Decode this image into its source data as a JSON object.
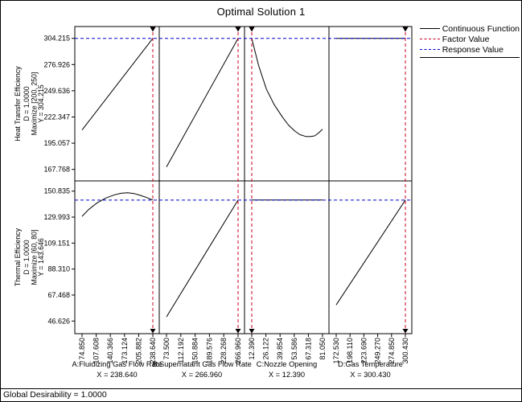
{
  "chart_data": {
    "type": "line",
    "title": "Optimal Solution 1",
    "status_bar": "Global Desirability = 1.0000",
    "colors": {
      "continuous_function": "#000000",
      "factor_value": "#cc0022",
      "response_value": "#0000cc"
    },
    "legend": [
      {
        "label": "Continuous Function",
        "color": "#000000",
        "style": "solid"
      },
      {
        "label": "Factor Value",
        "color": "#cc0022",
        "style": "dashed"
      },
      {
        "label": "Response Value",
        "color": "#0000cc",
        "style": "dashed"
      }
    ],
    "rows": [
      {
        "name_lines": [
          "Heat Transfer Efficiency",
          "D = 1.0000",
          "Maximize [200, 250]",
          "Y = 304.215"
        ],
        "ticks": [
          "304.215",
          "276.926",
          "249.636",
          "222.347",
          "195.057",
          "167.768"
        ],
        "response_value": 304.215
      },
      {
        "name_lines": [
          "Thermal Efficiency",
          "D = 1.0000",
          "Maximize [60, 80]",
          "Y = 143.646"
        ],
        "ticks": [
          "150.835",
          "129.993",
          "109.151",
          "88.310",
          "67.468",
          "46.626"
        ],
        "response_value": 143.646
      }
    ],
    "cols": [
      {
        "name": "A:Fluidizing Gas Flow Rate",
        "value_label": "X = 238.640",
        "ticks": [
          "74.850",
          "107.608",
          "140.366",
          "173.124",
          "205.882",
          "238.640"
        ],
        "factor_value": 238.64
      },
      {
        "name": "B:Supernatant Gas Flow Rate",
        "value_label": "X = 266.960",
        "ticks": [
          "73.500",
          "112.192",
          "150.884",
          "189.576",
          "228.268",
          "266.960"
        ],
        "factor_value": 266.96
      },
      {
        "name": "C:Nozzle Opening",
        "value_label": "X = 12.390",
        "ticks": [
          "12.390",
          "26.122",
          "39.854",
          "53.586",
          "67.318",
          "81.050"
        ],
        "factor_value": 12.39
      },
      {
        "name": "D:Gas Temperature",
        "value_label": "X = 300.430",
        "ticks": [
          "172.530",
          "198.110",
          "223.690",
          "249.270",
          "274.850",
          "300.430"
        ],
        "factor_value": 300.43
      }
    ],
    "cells": [
      {
        "row": 0,
        "col": 0,
        "points": [
          [
            74.85,
            208.8
          ],
          [
            238.64,
            304.215
          ]
        ]
      },
      {
        "row": 0,
        "col": 1,
        "points": [
          [
            73.5,
            170.4
          ],
          [
            266.96,
            304.215
          ]
        ]
      },
      {
        "row": 0,
        "col": 2,
        "points": [
          [
            12.39,
            304.215
          ],
          [
            19,
            276
          ],
          [
            26.6,
            251.4
          ],
          [
            34,
            235.5
          ],
          [
            42.2,
            222.2
          ],
          [
            48,
            214
          ],
          [
            53.8,
            208
          ],
          [
            59,
            204
          ],
          [
            64.7,
            202.1
          ],
          [
            69,
            201.9
          ],
          [
            73.3,
            202.7
          ],
          [
            77,
            205.5
          ],
          [
            81.05,
            209.6
          ]
        ]
      },
      {
        "row": 0,
        "col": 3,
        "points": [
          [
            172.53,
            304.215
          ],
          [
            300.43,
            304.215
          ]
        ]
      },
      {
        "row": 1,
        "col": 0,
        "points": [
          [
            74.85,
            130.6
          ],
          [
            90,
            136
          ],
          [
            110,
            141.5
          ],
          [
            130,
            145.3
          ],
          [
            150,
            147.9
          ],
          [
            165,
            149.1
          ],
          [
            180,
            149.5
          ],
          [
            195,
            148.9
          ],
          [
            210,
            147.4
          ],
          [
            225,
            145.6
          ],
          [
            238.64,
            143.646
          ]
        ]
      },
      {
        "row": 1,
        "col": 1,
        "points": [
          [
            73.5,
            50.0
          ],
          [
            266.96,
            143.646
          ]
        ]
      },
      {
        "row": 1,
        "col": 2,
        "points": [
          [
            12.39,
            143.646
          ],
          [
            81.05,
            143.646
          ]
        ]
      },
      {
        "row": 1,
        "col": 3,
        "points": [
          [
            172.53,
            59.6
          ],
          [
            300.43,
            143.646
          ]
        ]
      }
    ]
  }
}
